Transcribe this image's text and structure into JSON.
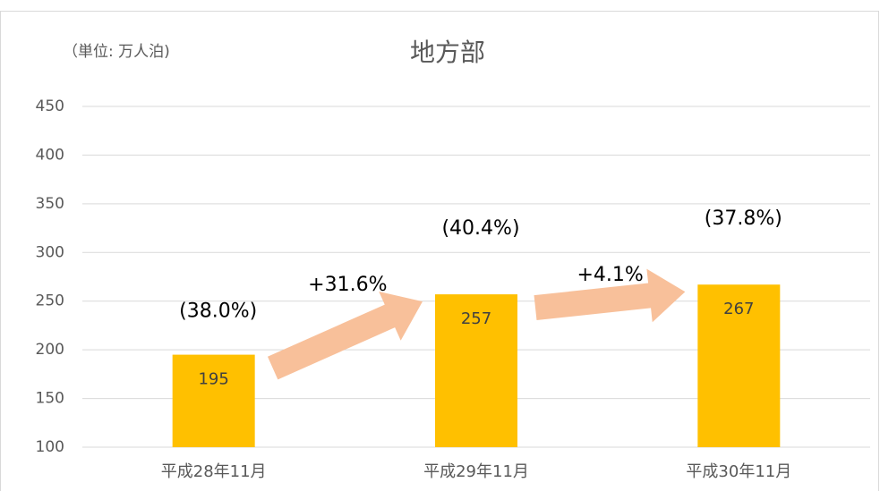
{
  "chart_data": {
    "type": "bar",
    "title": "地方部",
    "unit_label": "（単位: 万人泊)",
    "categories": [
      "平成28年11月",
      "平成29年11月",
      "平成30年11月"
    ],
    "values": [
      195,
      257,
      267
    ],
    "color": "#ffc000",
    "share_labels": [
      "(38.0%)",
      "(40.4%)",
      "(37.8%)"
    ],
    "growth_labels": [
      "+31.6%",
      "+4.1%"
    ],
    "arrow_color": "#f8c09a",
    "ylim": [
      100,
      450
    ],
    "yticks": [
      100,
      150,
      200,
      250,
      300,
      350,
      400,
      450
    ],
    "grid": true
  }
}
